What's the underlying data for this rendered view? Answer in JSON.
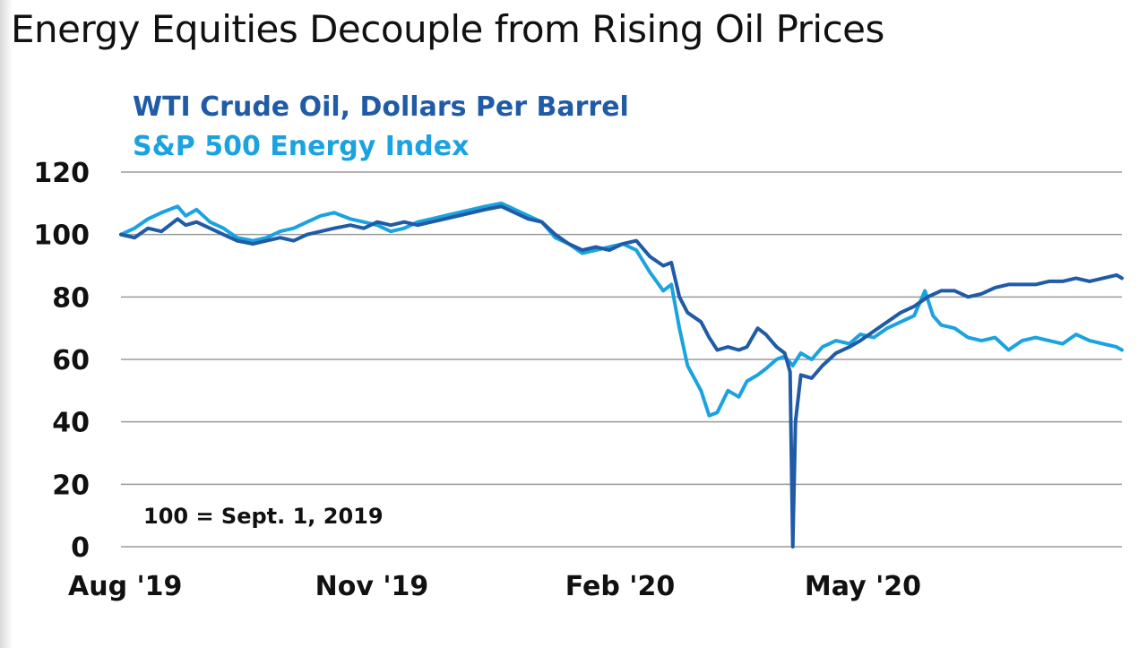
{
  "chart_data": {
    "type": "line",
    "title": "Energy Equities Decouple from Rising Oil Prices",
    "annotation": "100 = Sept. 1, 2019",
    "ylim": [
      0,
      120
    ],
    "yticks": [
      0,
      20,
      40,
      60,
      80,
      100,
      120
    ],
    "xlim": [
      "2019-08-15",
      "2020-08-20"
    ],
    "x_tick_labels": [
      {
        "date": "2019-08-15",
        "label": "Aug '19"
      },
      {
        "date": "2019-11-15",
        "label": "Nov '19"
      },
      {
        "date": "2020-02-15",
        "label": "Feb '20"
      },
      {
        "date": "2020-05-15",
        "label": "May '20"
      }
    ],
    "grid": "horizontal",
    "series": [
      {
        "name": "WTI Crude Oil, Dollars Per Barrel",
        "color": "#1f5ba6",
        "points": [
          [
            "2019-08-15",
            100
          ],
          [
            "2019-08-20",
            99
          ],
          [
            "2019-08-25",
            102
          ],
          [
            "2019-08-30",
            101
          ],
          [
            "2019-09-05",
            105
          ],
          [
            "2019-09-08",
            103
          ],
          [
            "2019-09-12",
            104
          ],
          [
            "2019-09-17",
            102
          ],
          [
            "2019-09-22",
            100
          ],
          [
            "2019-09-27",
            98
          ],
          [
            "2019-10-03",
            97
          ],
          [
            "2019-10-08",
            98
          ],
          [
            "2019-10-13",
            99
          ],
          [
            "2019-10-18",
            98
          ],
          [
            "2019-10-23",
            100
          ],
          [
            "2019-10-28",
            101
          ],
          [
            "2019-11-02",
            102
          ],
          [
            "2019-11-08",
            103
          ],
          [
            "2019-11-13",
            102
          ],
          [
            "2019-11-18",
            104
          ],
          [
            "2019-11-23",
            103
          ],
          [
            "2019-11-28",
            104
          ],
          [
            "2019-12-03",
            103
          ],
          [
            "2019-12-08",
            104
          ],
          [
            "2019-12-13",
            105
          ],
          [
            "2019-12-18",
            106
          ],
          [
            "2019-12-23",
            107
          ],
          [
            "2019-12-28",
            108
          ],
          [
            "2020-01-03",
            109
          ],
          [
            "2020-01-08",
            107
          ],
          [
            "2020-01-13",
            105
          ],
          [
            "2020-01-18",
            104
          ],
          [
            "2020-01-23",
            100
          ],
          [
            "2020-01-28",
            97
          ],
          [
            "2020-02-02",
            95
          ],
          [
            "2020-02-07",
            96
          ],
          [
            "2020-02-12",
            95
          ],
          [
            "2020-02-17",
            97
          ],
          [
            "2020-02-22",
            98
          ],
          [
            "2020-02-27",
            93
          ],
          [
            "2020-03-03",
            90
          ],
          [
            "2020-03-06",
            91
          ],
          [
            "2020-03-09",
            80
          ],
          [
            "2020-03-12",
            75
          ],
          [
            "2020-03-17",
            72
          ],
          [
            "2020-03-20",
            67
          ],
          [
            "2020-03-23",
            63
          ],
          [
            "2020-03-27",
            64
          ],
          [
            "2020-03-31",
            63
          ],
          [
            "2020-04-03",
            64
          ],
          [
            "2020-04-07",
            70
          ],
          [
            "2020-04-10",
            68
          ],
          [
            "2020-04-14",
            64
          ],
          [
            "2020-04-17",
            62
          ],
          [
            "2020-04-19",
            56
          ],
          [
            "2020-04-20",
            0
          ],
          [
            "2020-04-21",
            40
          ],
          [
            "2020-04-23",
            55
          ],
          [
            "2020-04-27",
            54
          ],
          [
            "2020-05-01",
            58
          ],
          [
            "2020-05-06",
            62
          ],
          [
            "2020-05-11",
            64
          ],
          [
            "2020-05-15",
            66
          ],
          [
            "2020-05-20",
            69
          ],
          [
            "2020-05-25",
            72
          ],
          [
            "2020-05-30",
            75
          ],
          [
            "2020-06-04",
            77
          ],
          [
            "2020-06-09",
            80
          ],
          [
            "2020-06-14",
            82
          ],
          [
            "2020-06-19",
            82
          ],
          [
            "2020-06-24",
            80
          ],
          [
            "2020-06-29",
            81
          ],
          [
            "2020-07-04",
            83
          ],
          [
            "2020-07-09",
            84
          ],
          [
            "2020-07-14",
            84
          ],
          [
            "2020-07-19",
            84
          ],
          [
            "2020-07-24",
            85
          ],
          [
            "2020-07-29",
            85
          ],
          [
            "2020-08-03",
            86
          ],
          [
            "2020-08-08",
            85
          ],
          [
            "2020-08-13",
            86
          ],
          [
            "2020-08-18",
            87
          ],
          [
            "2020-08-20",
            86
          ]
        ]
      },
      {
        "name": "S&P 500 Energy Index",
        "color": "#1aa3e0",
        "points": [
          [
            "2019-08-15",
            100
          ],
          [
            "2019-08-20",
            102
          ],
          [
            "2019-08-25",
            105
          ],
          [
            "2019-08-30",
            107
          ],
          [
            "2019-09-05",
            109
          ],
          [
            "2019-09-08",
            106
          ],
          [
            "2019-09-12",
            108
          ],
          [
            "2019-09-17",
            104
          ],
          [
            "2019-09-22",
            102
          ],
          [
            "2019-09-27",
            99
          ],
          [
            "2019-10-03",
            98
          ],
          [
            "2019-10-08",
            99
          ],
          [
            "2019-10-13",
            101
          ],
          [
            "2019-10-18",
            102
          ],
          [
            "2019-10-23",
            104
          ],
          [
            "2019-10-28",
            106
          ],
          [
            "2019-11-02",
            107
          ],
          [
            "2019-11-08",
            105
          ],
          [
            "2019-11-13",
            104
          ],
          [
            "2019-11-18",
            103
          ],
          [
            "2019-11-23",
            101
          ],
          [
            "2019-11-28",
            102
          ],
          [
            "2019-12-03",
            104
          ],
          [
            "2019-12-08",
            105
          ],
          [
            "2019-12-13",
            106
          ],
          [
            "2019-12-18",
            107
          ],
          [
            "2019-12-23",
            108
          ],
          [
            "2019-12-28",
            109
          ],
          [
            "2020-01-03",
            110
          ],
          [
            "2020-01-08",
            108
          ],
          [
            "2020-01-13",
            106
          ],
          [
            "2020-01-18",
            104
          ],
          [
            "2020-01-23",
            99
          ],
          [
            "2020-01-28",
            97
          ],
          [
            "2020-02-02",
            94
          ],
          [
            "2020-02-07",
            95
          ],
          [
            "2020-02-12",
            96
          ],
          [
            "2020-02-17",
            97
          ],
          [
            "2020-02-22",
            95
          ],
          [
            "2020-02-27",
            88
          ],
          [
            "2020-03-03",
            82
          ],
          [
            "2020-03-06",
            84
          ],
          [
            "2020-03-09",
            70
          ],
          [
            "2020-03-12",
            58
          ],
          [
            "2020-03-17",
            50
          ],
          [
            "2020-03-20",
            42
          ],
          [
            "2020-03-23",
            43
          ],
          [
            "2020-03-27",
            50
          ],
          [
            "2020-03-31",
            48
          ],
          [
            "2020-04-03",
            53
          ],
          [
            "2020-04-07",
            55
          ],
          [
            "2020-04-10",
            57
          ],
          [
            "2020-04-14",
            60
          ],
          [
            "2020-04-17",
            61
          ],
          [
            "2020-04-20",
            58
          ],
          [
            "2020-04-23",
            62
          ],
          [
            "2020-04-27",
            60
          ],
          [
            "2020-05-01",
            64
          ],
          [
            "2020-05-06",
            66
          ],
          [
            "2020-05-11",
            65
          ],
          [
            "2020-05-15",
            68
          ],
          [
            "2020-05-20",
            67
          ],
          [
            "2020-05-25",
            70
          ],
          [
            "2020-05-30",
            72
          ],
          [
            "2020-06-04",
            74
          ],
          [
            "2020-06-08",
            82
          ],
          [
            "2020-06-11",
            74
          ],
          [
            "2020-06-14",
            71
          ],
          [
            "2020-06-19",
            70
          ],
          [
            "2020-06-24",
            67
          ],
          [
            "2020-06-29",
            66
          ],
          [
            "2020-07-04",
            67
          ],
          [
            "2020-07-09",
            63
          ],
          [
            "2020-07-14",
            66
          ],
          [
            "2020-07-19",
            67
          ],
          [
            "2020-07-24",
            66
          ],
          [
            "2020-07-29",
            65
          ],
          [
            "2020-08-03",
            68
          ],
          [
            "2020-08-08",
            66
          ],
          [
            "2020-08-13",
            65
          ],
          [
            "2020-08-18",
            64
          ],
          [
            "2020-08-20",
            63
          ]
        ]
      }
    ]
  }
}
